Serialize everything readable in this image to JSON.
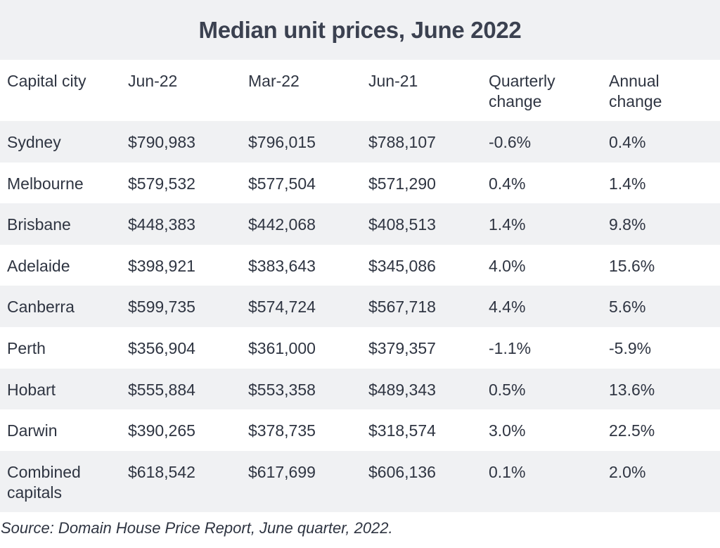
{
  "chart_data": {
    "type": "table",
    "title": "Median unit prices, June 2022",
    "columns": [
      "Capital city",
      "Jun-22",
      "Mar-22",
      "Jun-21",
      "Quarterly change",
      "Annual change"
    ],
    "rows": [
      [
        "Sydney",
        "$790,983",
        "$796,015",
        "$788,107",
        "-0.6%",
        "0.4%"
      ],
      [
        "Melbourne",
        "$579,532",
        "$577,504",
        "$571,290",
        "0.4%",
        "1.4%"
      ],
      [
        "Brisbane",
        "$448,383",
        "$442,068",
        "$408,513",
        "1.4%",
        "9.8%"
      ],
      [
        "Adelaide",
        "$398,921",
        "$383,643",
        "$345,086",
        "4.0%",
        "15.6%"
      ],
      [
        "Canberra",
        "$599,735",
        "$574,724",
        "$567,718",
        "4.4%",
        "5.6%"
      ],
      [
        "Perth",
        "$356,904",
        "$361,000",
        "$379,357",
        "-1.1%",
        "-5.9%"
      ],
      [
        "Hobart",
        "$555,884",
        "$553,358",
        "$489,343",
        "0.5%",
        "13.6%"
      ],
      [
        "Darwin",
        "$390,265",
        "$378,735",
        "$318,574",
        "3.0%",
        "22.5%"
      ],
      [
        "Combined capitals",
        "$618,542",
        "$617,699",
        "$606,136",
        "0.1%",
        "2.0%"
      ]
    ],
    "source": "Source: Domain House Price Report, June quarter, 2022."
  },
  "colors": {
    "band": "#f0f1f3",
    "text": "#2f3542",
    "title": "#3b4150"
  }
}
